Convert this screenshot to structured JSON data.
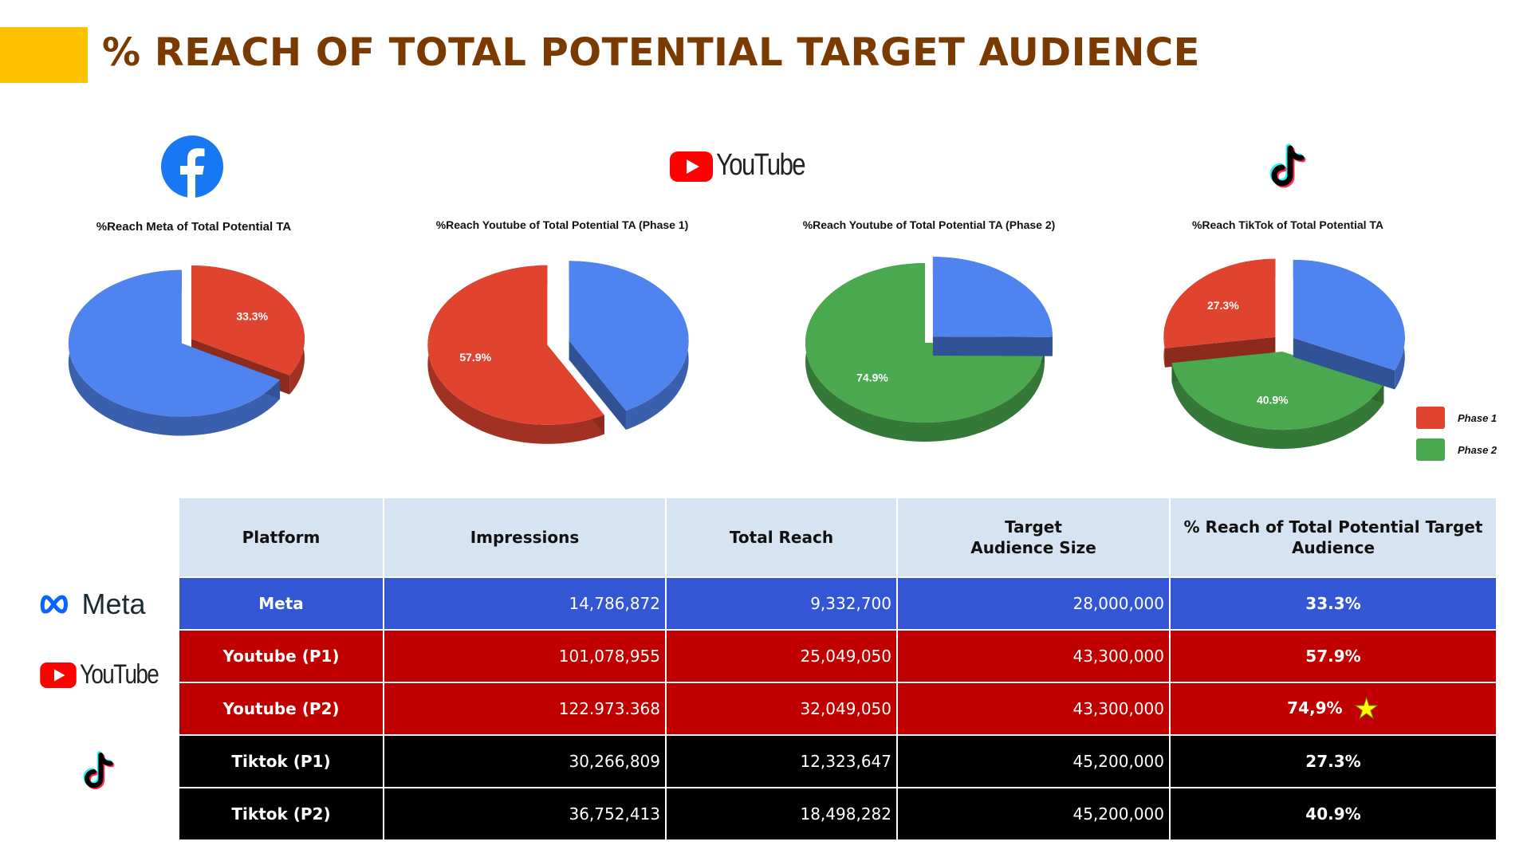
{
  "page": {
    "title": "% REACH OF TOTAL POTENTIAL TARGET AUDIENCE"
  },
  "logos": {
    "youtube_word": "YouTube",
    "meta_word": "Meta"
  },
  "colors": {
    "phase1": "#E0442F",
    "phase2": "#4AA84E",
    "rest": "#4F84F0",
    "accent": "#FFC000",
    "title": "#7B3B00"
  },
  "chart_data": [
    {
      "type": "pie",
      "title": "%Reach Meta of Total Potential TA",
      "slices": [
        {
          "label": "Phase 1",
          "value": 33.3,
          "label_text": "33.3%"
        },
        {
          "label": "",
          "value": 66.7,
          "label_text": ""
        }
      ]
    },
    {
      "type": "pie",
      "title": "%Reach Youtube of Total Potential TA (Phase 1)",
      "slices": [
        {
          "label": "Phase 1",
          "value": 57.9,
          "label_text": "57.9%"
        },
        {
          "label": "",
          "value": 42.1,
          "label_text": ""
        }
      ]
    },
    {
      "type": "pie",
      "title": "%Reach Youtube of Total Potential TA (Phase 2)",
      "slices": [
        {
          "label": "Phase 2",
          "value": 74.9,
          "label_text": "74.9%"
        },
        {
          "label": "",
          "value": 25.1,
          "label_text": ""
        }
      ]
    },
    {
      "type": "pie",
      "title": "%Reach TikTok of Total Potential TA",
      "slices": [
        {
          "label": "Phase 1",
          "value": 27.3,
          "label_text": "27.3%"
        },
        {
          "label": "Phase 2",
          "value": 40.9,
          "label_text": "40.9%"
        },
        {
          "label": "",
          "value": 31.8,
          "label_text": ""
        }
      ]
    },
    {
      "type": "table",
      "columns": [
        "Platform",
        "Impressions",
        "Total Reach",
        "Target\nAudience Size",
        "% Reach of Total Potential Target Audience"
      ],
      "rows": [
        [
          "Meta",
          "14,786,872",
          "9,332,700",
          "28,000,000",
          "33.3%"
        ],
        [
          "Youtube (P1)",
          "101,078,955",
          "25,049,050",
          "43,300,000",
          "57.9%"
        ],
        [
          "Youtube (P2)",
          "122.973.368",
          "32,049,050",
          "43,300,000",
          "74,9%"
        ],
        [
          "Tiktok (P1)",
          "30,266,809",
          "12,323,647",
          "45,200,000",
          "27.3%"
        ],
        [
          "Tiktok (P2)",
          "36,752,413",
          "18,498,282",
          "45,200,000",
          "40.9%"
        ]
      ]
    }
  ],
  "legend": [
    {
      "label": "Phase 1",
      "color": "#E0442F"
    },
    {
      "label": "Phase 2",
      "color": "#4AA84E"
    }
  ]
}
